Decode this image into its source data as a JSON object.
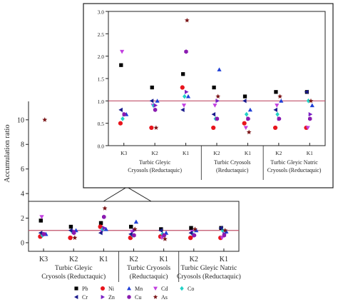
{
  "chart_data": {
    "type": "scatter",
    "ylabel": "Accumulation ratio",
    "reference_line": 1.0,
    "categories": [
      "K3",
      "K2",
      "K1",
      "K2",
      "K1",
      "K2",
      "K1"
    ],
    "groups": [
      {
        "label_line1": "Turbic Gleyic",
        "label_line2": "Cryosols (Reductaquic)",
        "categories": [
          "K3",
          "K2",
          "K1"
        ]
      },
      {
        "label_line1": "Turbic Cryosols",
        "label_line2": "(Reductaquic)",
        "categories": [
          "K2",
          "K1"
        ]
      },
      {
        "label_line1": "Turbic Gleyic Natric",
        "label_line2": "Cryosols (Reductaquic)",
        "categories": [
          "K2",
          "K1"
        ]
      }
    ],
    "series": [
      {
        "name": "Pb",
        "values": [
          1.8,
          1.3,
          1.6,
          1.3,
          1.1,
          1.2,
          1.2
        ]
      },
      {
        "name": "Ni",
        "values": [
          0.5,
          0.4,
          1.3,
          0.4,
          0.5,
          0.4,
          0.4
        ]
      },
      {
        "name": "Mn",
        "values": [
          0.7,
          1.0,
          1.1,
          1.7,
          0.8,
          1.0,
          0.9
        ]
      },
      {
        "name": "Cd",
        "values": [
          2.1,
          0.9,
          0.9,
          0.9,
          0.4,
          0.9,
          0.4
        ]
      },
      {
        "name": "Co",
        "values": [
          0.6,
          0.9,
          1.1,
          0.6,
          0.7,
          0.7,
          1.0
        ]
      },
      {
        "name": "Cr",
        "values": [
          0.8,
          1.0,
          0.8,
          0.7,
          1.0,
          0.8,
          1.2
        ]
      },
      {
        "name": "Zn",
        "values": [
          0.7,
          0.9,
          1.2,
          1.0,
          0.6,
          0.6,
          0.7
        ]
      },
      {
        "name": "Cu",
        "values": [
          0.7,
          0.8,
          2.1,
          0.6,
          0.6,
          0.6,
          0.6
        ]
      },
      {
        "name": "As",
        "values": [
          10.0,
          0.4,
          2.8,
          1.1,
          0.3,
          1.1,
          1.0
        ]
      }
    ],
    "main_panel": {
      "ylim": [
        -0.7,
        11.5
      ],
      "yticks": [
        0,
        2,
        4,
        6,
        8,
        10
      ]
    },
    "inset_panel": {
      "ylim": [
        0,
        3.0
      ],
      "yticks": [
        0.0,
        0.5,
        1.0,
        1.5,
        2.0,
        2.5,
        3.0
      ]
    },
    "colors": {
      "Pb": "#000000",
      "Ni": "#e8141c",
      "Mn": "#1f3fd6",
      "Cd": "#c23fe0",
      "Co": "#22d2c6",
      "Cr": "#1a1a8c",
      "Zn": "#7a1fc4",
      "Cu": "#8a1bb0",
      "As": "#7a1416",
      "reference_line": "#c0506a"
    }
  }
}
